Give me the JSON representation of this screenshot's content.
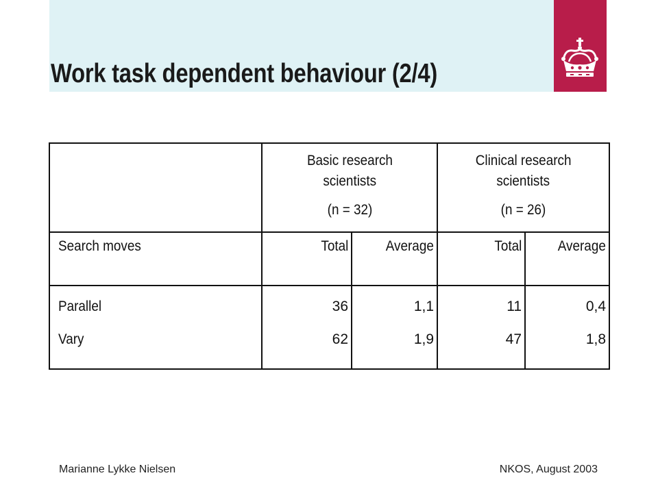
{
  "slide": {
    "title": "Work task dependent behaviour (2/4)"
  },
  "table": {
    "groups": [
      {
        "line1": "Basic research",
        "line2": "scientists",
        "n": "(n = 32)"
      },
      {
        "line1": "Clinical research",
        "line2": "scientists",
        "n": "(n = 26)"
      }
    ],
    "subheader": {
      "label": "Search moves",
      "basic_total": "Total",
      "basic_average": "Average",
      "clinical_total": "Total",
      "clinical_average": "Average"
    },
    "rows": [
      {
        "label": "Parallel",
        "basic_total": "36",
        "basic_average": "1,1",
        "clinical_total": "11",
        "clinical_average": "0,4"
      },
      {
        "label": "Vary",
        "basic_total": "62",
        "basic_average": "1,9",
        "clinical_total": "47",
        "clinical_average": "1,8"
      }
    ]
  },
  "footer": {
    "author": "Marianne Lykke Nielsen",
    "event": "NKOS, August 2003"
  },
  "colors": {
    "header_band": "#dff2f5",
    "logo_panel": "#b81d4a"
  },
  "logo": {
    "icon": "crown-icon"
  }
}
